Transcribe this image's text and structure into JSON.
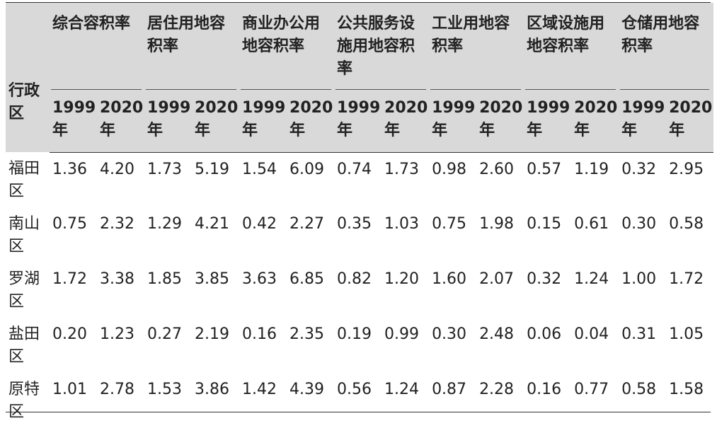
{
  "table": {
    "district_header": "行政区",
    "groups": [
      "综合容积率",
      "居住用地容积率",
      "商业办公用地容积率",
      "公共服务设施用地容积率",
      "工业用地容积率",
      "区域设施用地容积率",
      "仓储用地容积率"
    ],
    "years": [
      "1999年",
      "2020年"
    ],
    "rows": [
      {
        "district": "福田区",
        "values": [
          "1.36",
          "4.20",
          "1.73",
          "5.19",
          "1.54",
          "6.09",
          "0.74",
          "1.73",
          "0.98",
          "2.60",
          "0.57",
          "1.19",
          "0.32",
          "2.95"
        ]
      },
      {
        "district": "南山区",
        "values": [
          "0.75",
          "2.32",
          "1.29",
          "4.21",
          "0.42",
          "2.27",
          "0.35",
          "1.03",
          "0.75",
          "1.98",
          "0.15",
          "0.61",
          "0.30",
          "0.58"
        ]
      },
      {
        "district": "罗湖区",
        "values": [
          "1.72",
          "3.38",
          "1.85",
          "3.85",
          "3.63",
          "6.85",
          "0.82",
          "1.20",
          "1.60",
          "2.07",
          "0.32",
          "1.24",
          "1.00",
          "1.72"
        ]
      },
      {
        "district": "盐田区",
        "values": [
          "0.20",
          "1.23",
          "0.27",
          "2.19",
          "0.16",
          "2.35",
          "0.19",
          "0.99",
          "0.30",
          "2.48",
          "0.06",
          "0.04",
          "0.31",
          "1.05"
        ]
      },
      {
        "district": "原特区",
        "values": [
          "1.01",
          "2.78",
          "1.53",
          "3.86",
          "1.42",
          "4.39",
          "0.56",
          "1.24",
          "0.87",
          "2.28",
          "0.16",
          "0.77",
          "0.58",
          "1.58"
        ]
      }
    ]
  }
}
